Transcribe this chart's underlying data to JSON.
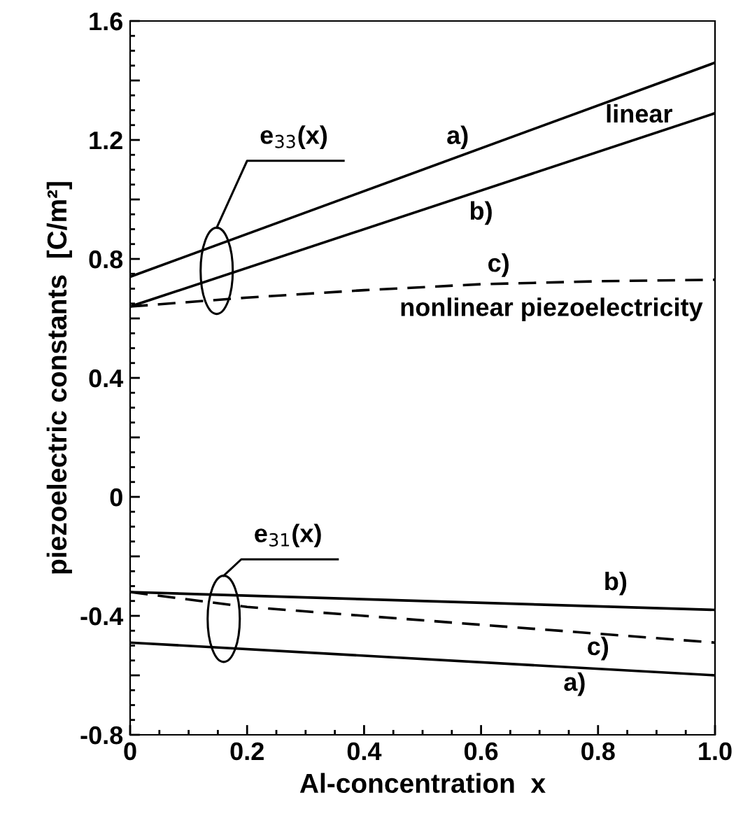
{
  "chart_data": {
    "type": "line",
    "xlabel": "Al-concentration  x",
    "ylabel": "piezoelectric constants  [C/m²]",
    "xlim": [
      0,
      1.0
    ],
    "xticks": [
      0,
      0.2,
      0.4,
      0.6,
      0.8,
      {
        "value": 1.0,
        "label": "1.0"
      }
    ],
    "ylim": [
      -0.8,
      1.6
    ],
    "yticks": [
      -0.8,
      {
        "value": -0.6,
        "label": null
      },
      -0.4,
      {
        "value": -0.2,
        "label": null
      },
      0,
      {
        "value": 0.2,
        "label": null
      },
      0.4,
      {
        "value": 0.6,
        "label": null
      },
      0.8,
      {
        "value": 1.0,
        "label": null
      },
      1.2,
      {
        "value": 1.4,
        "label": null
      },
      1.6
    ],
    "grid": false,
    "legend": false,
    "series": [
      {
        "color": "#000000",
        "line_style": "solid",
        "x": [
          0,
          1.0
        ],
        "values": [
          0.74,
          1.46
        ]
      },
      {
        "color": "#000000",
        "line_style": "solid",
        "x": [
          0,
          1.0
        ],
        "values": [
          0.64,
          1.29
        ]
      },
      {
        "color": "#000000",
        "line_style": "dashed",
        "x": [
          0,
          0.2,
          0.4,
          0.6,
          0.8,
          1.0
        ],
        "values": [
          0.64,
          0.67,
          0.695,
          0.715,
          0.725,
          0.73
        ]
      },
      {
        "color": "#000000",
        "line_style": "solid",
        "x": [
          0,
          1.0
        ],
        "values": [
          -0.32,
          -0.38
        ]
      },
      {
        "color": "#000000",
        "line_style": "dashed",
        "x": [
          0,
          0.2,
          0.4,
          0.6,
          0.8,
          1.0
        ],
        "values": [
          -0.32,
          -0.37,
          -0.4,
          -0.43,
          -0.46,
          -0.49
        ]
      },
      {
        "color": "#000000",
        "line_style": "solid",
        "x": [
          0,
          1.0
        ],
        "values": [
          -0.49,
          -0.6
        ]
      }
    ],
    "annotations": [
      "e$_{33}$(x)",
      "a)",
      "linear",
      "b)",
      "c)",
      "nonlinear piezoelectricity",
      "e$_{31}$(x)",
      "b)",
      "c)",
      "a)"
    ]
  }
}
